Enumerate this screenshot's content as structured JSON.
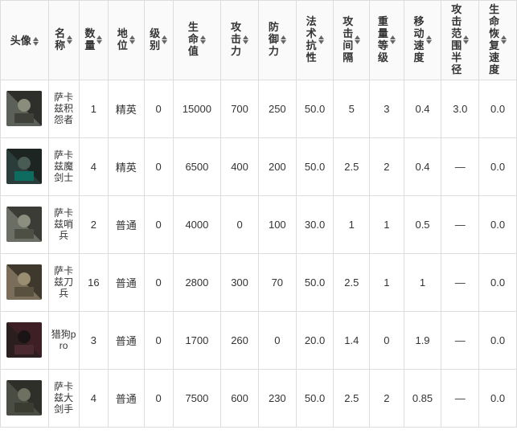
{
  "columns": [
    {
      "key": "avatar",
      "label": "头像",
      "cls": "col-avatar",
      "vertical": false
    },
    {
      "key": "name",
      "label": "名称",
      "cls": "col-name",
      "vertical": true
    },
    {
      "key": "qty",
      "label": "数量",
      "cls": "col-qty",
      "vertical": true
    },
    {
      "key": "pos",
      "label": "地位",
      "cls": "col-pos",
      "vertical": true
    },
    {
      "key": "lvl",
      "label": "级别",
      "cls": "col-lvl",
      "vertical": true
    },
    {
      "key": "hp",
      "label": "生命值",
      "cls": "col-hp",
      "vertical": true
    },
    {
      "key": "atk",
      "label": "攻击力",
      "cls": "col-atk",
      "vertical": true
    },
    {
      "key": "def",
      "label": "防御力",
      "cls": "col-def",
      "vertical": true
    },
    {
      "key": "res",
      "label": "法术抗性",
      "cls": "col-res",
      "vertical": true
    },
    {
      "key": "intv",
      "label": "攻击间隔",
      "cls": "col-intv",
      "vertical": true
    },
    {
      "key": "wgt",
      "label": "重量等级",
      "cls": "col-wgt",
      "vertical": true
    },
    {
      "key": "spd",
      "label": "移动速度",
      "cls": "col-spd",
      "vertical": true
    },
    {
      "key": "rng",
      "label": "攻击范围半径",
      "cls": "col-rng",
      "vertical": true
    },
    {
      "key": "regen",
      "label": "生命恢复速度",
      "cls": "col-regen",
      "vertical": true
    }
  ],
  "sort_icon": {
    "up_fill": "#666",
    "down_fill": "#666",
    "size": 7
  },
  "header_bg": "#fafafa",
  "border_color": "#ddd",
  "dash": "—",
  "rows": [
    {
      "avatar_colors": [
        "#5b6158",
        "#2e2f2a",
        "#8a8d7b",
        "#3f4038"
      ],
      "name": "萨卡兹积怨者",
      "qty": "1",
      "pos": "精英",
      "lvl": "0",
      "hp": "15000",
      "atk": "700",
      "def": "250",
      "res": "50.0",
      "intv": "5",
      "wgt": "3",
      "spd": "0.4",
      "rng": "3.0",
      "regen": "0.0"
    },
    {
      "avatar_colors": [
        "#2a3d3a",
        "#1d2522",
        "#4a5b54",
        "#0e6b5f"
      ],
      "name": "萨卡兹魔剑士",
      "qty": "4",
      "pos": "精英",
      "lvl": "0",
      "hp": "6500",
      "atk": "400",
      "def": "200",
      "res": "50.0",
      "intv": "2.5",
      "wgt": "2",
      "spd": "0.4",
      "rng": "—",
      "regen": "0.0"
    },
    {
      "avatar_colors": [
        "#6a6e64",
        "#3a3c35",
        "#8c8f80",
        "#4d4f45"
      ],
      "name": "萨卡兹哨兵",
      "qty": "2",
      "pos": "普通",
      "lvl": "0",
      "hp": "4000",
      "atk": "0",
      "def": "100",
      "res": "30.0",
      "intv": "1",
      "wgt": "1",
      "spd": "0.5",
      "rng": "—",
      "regen": "0.0"
    },
    {
      "avatar_colors": [
        "#7a6e5a",
        "#3f382c",
        "#9a8e72",
        "#5a5040"
      ],
      "name": "萨卡兹刀兵",
      "qty": "16",
      "pos": "普通",
      "lvl": "0",
      "hp": "2800",
      "atk": "300",
      "def": "70",
      "res": "50.0",
      "intv": "2.5",
      "wgt": "1",
      "spd": "1",
      "rng": "—",
      "regen": "0.0"
    },
    {
      "avatar_colors": [
        "#2a1e1e",
        "#3d1f25",
        "#1a1416",
        "#4a2a30"
      ],
      "name": "猎狗pro",
      "qty": "3",
      "pos": "普通",
      "lvl": "0",
      "hp": "1700",
      "atk": "260",
      "def": "0",
      "res": "20.0",
      "intv": "1.4",
      "wgt": "0",
      "spd": "1.9",
      "rng": "—",
      "regen": "0.0"
    },
    {
      "avatar_colors": [
        "#4a4d44",
        "#2d2f28",
        "#6e7162",
        "#3a3c32"
      ],
      "name": "萨卡兹大剑手",
      "qty": "4",
      "pos": "普通",
      "lvl": "0",
      "hp": "7500",
      "atk": "600",
      "def": "230",
      "res": "50.0",
      "intv": "2.5",
      "wgt": "2",
      "spd": "0.85",
      "rng": "—",
      "regen": "0.0"
    }
  ]
}
